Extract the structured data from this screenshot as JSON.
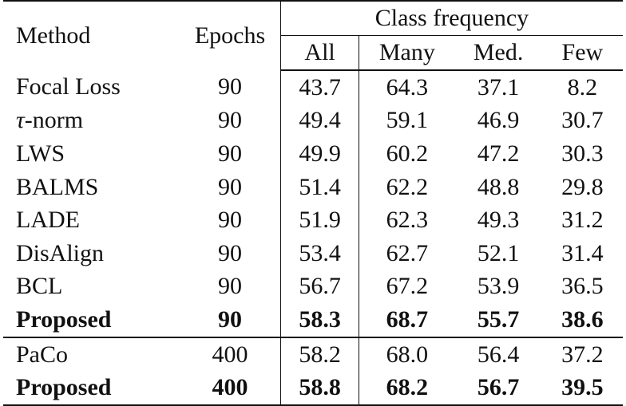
{
  "table": {
    "headers": {
      "method": "Method",
      "epochs": "Epochs",
      "group": "Class frequency",
      "all": "All",
      "many": "Many",
      "med": "Med.",
      "few": "Few"
    },
    "rows": [
      {
        "method": "Focal Loss",
        "epochs": "90",
        "all": "43.7",
        "many": "64.3",
        "med": "37.1",
        "few": "8.2"
      },
      {
        "method_symbol": "τ",
        "method": "-norm",
        "epochs": "90",
        "all": "49.4",
        "many": "59.1",
        "med": "46.9",
        "few": "30.7"
      },
      {
        "method": "LWS",
        "epochs": "90",
        "all": "49.9",
        "many": "60.2",
        "med": "47.2",
        "few": "30.3"
      },
      {
        "method": "BALMS",
        "epochs": "90",
        "all": "51.4",
        "many": "62.2",
        "med": "48.8",
        "few": "29.8"
      },
      {
        "method": "LADE",
        "epochs": "90",
        "all": "51.9",
        "many": "62.3",
        "med": "49.3",
        "few": "31.2"
      },
      {
        "method": "DisAlign",
        "epochs": "90",
        "all": "53.4",
        "many": "62.7",
        "med": "52.1",
        "few": "31.4"
      },
      {
        "method": "BCL",
        "epochs": "90",
        "all": "56.7",
        "many": "67.2",
        "med": "53.9",
        "few": "36.5"
      },
      {
        "method": "Proposed",
        "epochs": "90",
        "all": "58.3",
        "many": "68.7",
        "med": "55.7",
        "few": "38.6"
      },
      {
        "method": "PaCo",
        "epochs": "400",
        "all": "58.2",
        "many": "68.0",
        "med": "56.4",
        "few": "37.2"
      },
      {
        "method": "Proposed",
        "epochs": "400",
        "all": "58.8",
        "many": "68.2",
        "med": "56.7",
        "few": "39.5"
      }
    ]
  }
}
